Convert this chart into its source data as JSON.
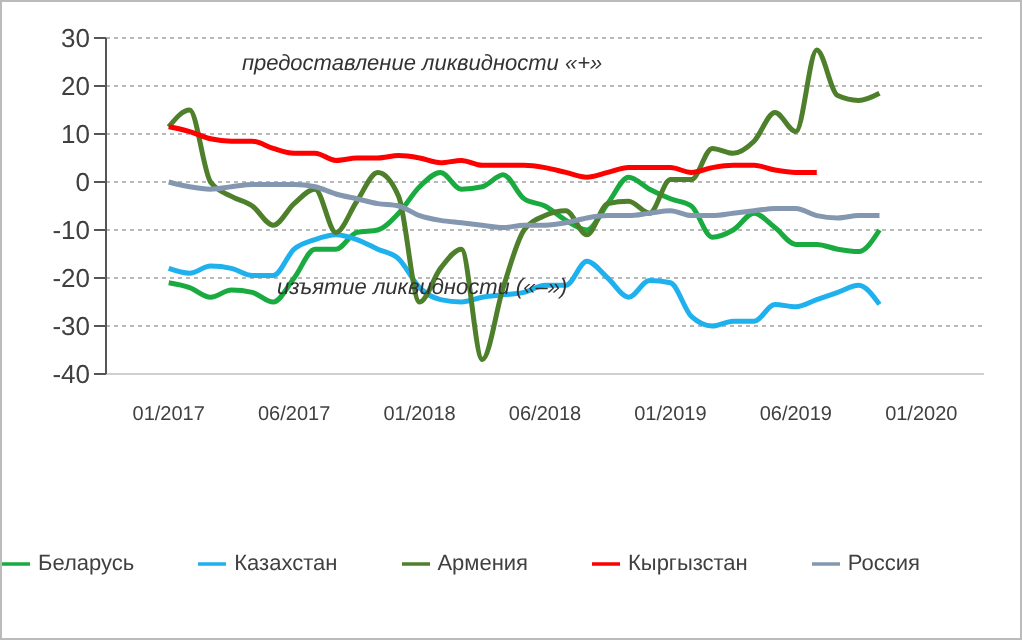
{
  "chart_data": {
    "type": "line",
    "categories": [
      "01/2017",
      null,
      null,
      null,
      null,
      null,
      "06/2017",
      null,
      null,
      null,
      null,
      null,
      "01/2018",
      null,
      null,
      null,
      null,
      null,
      "06/2018",
      null,
      null,
      null,
      null,
      null,
      "01/2019",
      null,
      null,
      null,
      null,
      null,
      "06/2019",
      null,
      null,
      null,
      null,
      null,
      "01/2020"
    ],
    "ylim": [
      -40,
      30
    ],
    "yticks": [
      -40,
      -30,
      -20,
      -10,
      0,
      10,
      20,
      30
    ],
    "grid": "y",
    "legend": "bottom",
    "annotations": [
      "предоставление ликвидности «+»",
      "изъятие ликвидности («–»)"
    ],
    "series": [
      {
        "name": "Беларусь",
        "color": "#1aab40",
        "values": [
          -21,
          -22,
          -24,
          -22.5,
          -23,
          -25,
          -20,
          -14,
          -14,
          -10.5,
          -10,
          -6.5,
          -1,
          2,
          -1.5,
          -1,
          1.5,
          -3.5,
          -5,
          -8,
          -10,
          -4.5,
          1,
          -1.5,
          -3.5,
          -5,
          -11.5,
          -10,
          -6.5,
          -9.5,
          -13,
          -13,
          -14,
          -14.5,
          -10,
          null,
          null
        ]
      },
      {
        "name": "Казахстан",
        "color": "#1fb1ed",
        "values": [
          -18,
          -19,
          -17.5,
          -18,
          -19.5,
          -19.5,
          -14,
          -12,
          -11,
          -12,
          -14,
          -16,
          -22,
          -24.5,
          -25,
          -24,
          -23.5,
          -23,
          -21.5,
          -21.5,
          -16.5,
          -20,
          -24,
          -20.5,
          -21,
          -28,
          -30,
          -29,
          -29,
          -25.5,
          -26,
          -24.5,
          -23,
          -21.5,
          -25.5,
          null,
          null
        ]
      },
      {
        "name": "Армения",
        "color": "#4e7f2a",
        "values": [
          11.5,
          15,
          0,
          -3,
          -5,
          -9,
          -4.5,
          -1.5,
          -10.5,
          -4,
          2,
          -3,
          -25,
          -18,
          -14,
          -37,
          -22,
          -10,
          -7,
          -6,
          -11,
          -4.5,
          -4,
          -6.5,
          0.5,
          0.5,
          7,
          6,
          8.5,
          14.5,
          10.5,
          27.5,
          18,
          17,
          18.5,
          null,
          null
        ]
      },
      {
        "name": "Кыргызстан",
        "color": "#ff0000",
        "values": [
          11.5,
          10.5,
          9,
          8.5,
          8.5,
          7,
          6,
          6,
          4.5,
          5,
          5,
          5.5,
          5,
          4,
          4.5,
          3.5,
          3.5,
          3.5,
          3,
          2,
          1,
          2,
          3,
          3,
          3,
          2,
          3,
          3.5,
          3.5,
          2.5,
          2,
          2,
          null,
          null,
          null,
          null,
          null
        ]
      },
      {
        "name": "Россия",
        "color": "#8497b0",
        "values": [
          0,
          -1,
          -1.5,
          -1,
          -0.5,
          -0.5,
          -0.5,
          -1,
          -2.5,
          -3.5,
          -4.5,
          -5,
          -7,
          -8,
          -8.5,
          -9,
          -9.5,
          -9,
          -9,
          -8.5,
          -7.5,
          -7,
          -7,
          -6.5,
          -6,
          -7,
          -7,
          -6.5,
          -6,
          -5.5,
          -5.5,
          -7,
          -7.5,
          -7,
          -7,
          null,
          null
        ]
      }
    ]
  }
}
